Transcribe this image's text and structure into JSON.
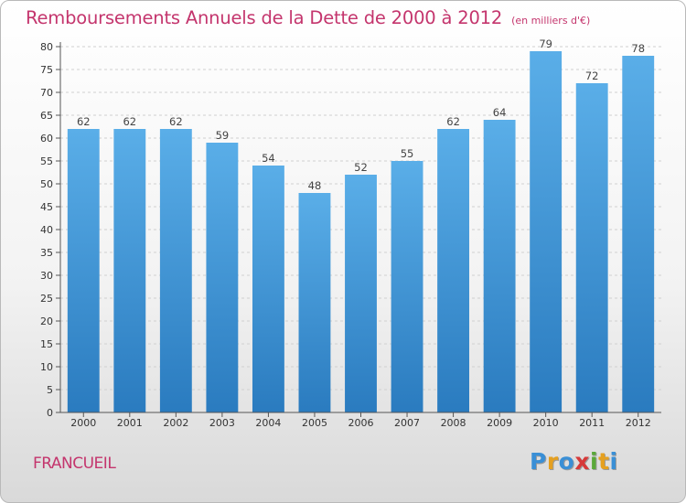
{
  "header": {
    "title": "Remboursements Annuels de la Dette de 2000 à 2012",
    "subtitle": "(en milliers d'€)"
  },
  "footer": {
    "commune": "FRANCUEIL",
    "brand": [
      "P",
      "r",
      "o",
      "x",
      "i",
      "t",
      "i"
    ],
    "brand_colors": [
      "#3a8fd6",
      "#e5a020",
      "#3a8fd6",
      "#d63a3a",
      "#5aa83a",
      "#e5a020",
      "#3a8fd6"
    ]
  },
  "chart_data": {
    "type": "bar",
    "title": "Remboursements Annuels de la Dette de 2000 à 2012",
    "subtitle": "(en milliers d'€)",
    "categories": [
      "2000",
      "2001",
      "2002",
      "2003",
      "2004",
      "2005",
      "2006",
      "2007",
      "2008",
      "2009",
      "2010",
      "2011",
      "2012"
    ],
    "values": [
      62,
      62,
      62,
      59,
      54,
      48,
      52,
      55,
      62,
      64,
      79,
      72,
      78
    ],
    "ylim": [
      0,
      80
    ],
    "ytick_step": 5,
    "grid": true,
    "bar_color_top": "#5aaee8",
    "bar_color_bottom": "#2a7bbf"
  }
}
